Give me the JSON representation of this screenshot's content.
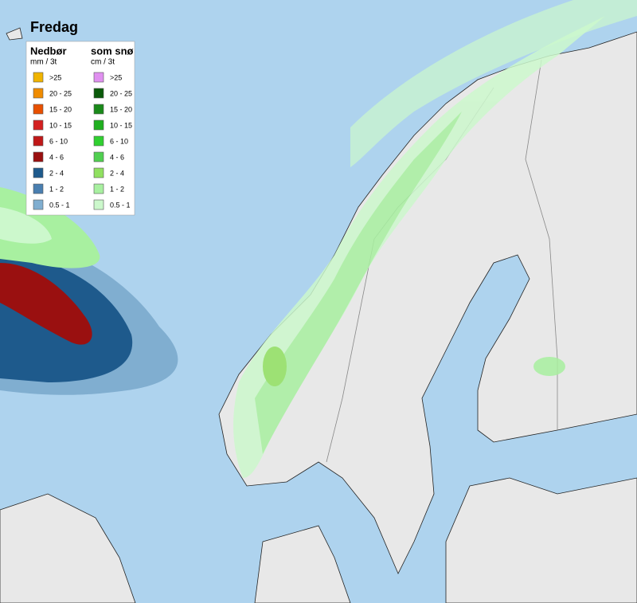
{
  "title": "Fredag",
  "legend": {
    "rain": {
      "title": "Nedbør",
      "unit": "mm / 3t",
      "items": [
        {
          "label": ">25",
          "color": "#f0b400"
        },
        {
          "label": "20 - 25",
          "color": "#f08c00"
        },
        {
          "label": "15 - 20",
          "color": "#e85000"
        },
        {
          "label": "10 - 15",
          "color": "#d42020"
        },
        {
          "label": "6 - 10",
          "color": "#c01818"
        },
        {
          "label": "4 - 6",
          "color": "#9a1010"
        },
        {
          "label": "2 - 4",
          "color": "#1e5a8c"
        },
        {
          "label": "1 - 2",
          "color": "#4a7fb0"
        },
        {
          "label": "0.5 - 1",
          "color": "#80aed0"
        }
      ]
    },
    "snow": {
      "title": "som snø",
      "unit": "cm / 3t",
      "items": [
        {
          "label": ">25",
          "color": "#e090f0"
        },
        {
          "label": "20 - 25",
          "color": "#0a5a0a"
        },
        {
          "label": "15 - 20",
          "color": "#1a8a1a"
        },
        {
          "label": "10 - 15",
          "color": "#20b020"
        },
        {
          "label": "6 - 10",
          "color": "#30d030"
        },
        {
          "label": "4 - 6",
          "color": "#50d050"
        },
        {
          "label": "2 - 4",
          "color": "#90e060"
        },
        {
          "label": "1 - 2",
          "color": "#a8f0a0"
        },
        {
          "label": "0.5 - 1",
          "color": "#ccf8cc"
        }
      ]
    }
  }
}
